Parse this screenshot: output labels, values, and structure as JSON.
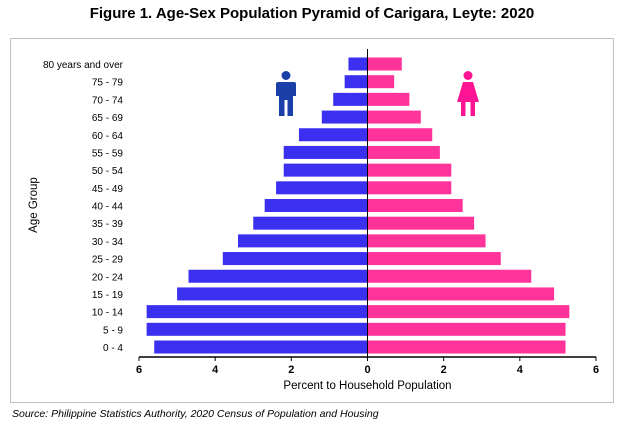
{
  "figure": {
    "title": "Figure 1. Age-Sex Population Pyramid of Carigara, Leyte: 2020",
    "source": "Source: Philippine Statistics Authority, 2020 Census of Population and Housing"
  },
  "icons": {
    "male": "male-icon",
    "female": "female-icon"
  },
  "colors": {
    "male": "#3b2ff0",
    "female": "#ff3399"
  },
  "chart_data": {
    "type": "bar",
    "orientation": "horizontal-pyramid",
    "title": "Figure 1. Age-Sex Population Pyramid of Carigara, Leyte: 2020",
    "xlabel": "Percent to Household Population",
    "ylabel": "Age Group",
    "xlim": [
      -6,
      6
    ],
    "xticks": [
      -6,
      -4,
      -2,
      0,
      2,
      4,
      6
    ],
    "xtick_labels": [
      "6",
      "4",
      "2",
      "0",
      "2",
      "4",
      "6"
    ],
    "grid": false,
    "legend": "none",
    "categories": [
      "0 - 4",
      "5 - 9",
      "10 - 14",
      "15 - 19",
      "20 - 24",
      "25 - 29",
      "30 - 34",
      "35 - 39",
      "40 - 44",
      "45 - 49",
      "50 - 54",
      "55 - 59",
      "60 - 64",
      "65 - 69",
      "70 - 74",
      "75 - 79",
      "80 years and over"
    ],
    "series": [
      {
        "values": [
          5.6,
          5.8,
          5.8,
          5.0,
          4.7,
          3.8,
          3.4,
          3.0,
          2.7,
          2.4,
          2.2,
          2.2,
          1.8,
          1.2,
          0.9,
          0.6,
          0.5
        ]
      },
      {
        "values": [
          5.2,
          5.2,
          5.3,
          4.9,
          4.3,
          3.5,
          3.1,
          2.8,
          2.5,
          2.2,
          2.2,
          1.9,
          1.7,
          1.4,
          1.1,
          0.7,
          0.9
        ]
      }
    ]
  }
}
